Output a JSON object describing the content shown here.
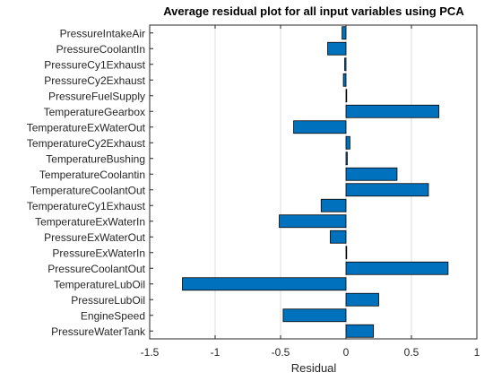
{
  "chart_data": {
    "type": "bar",
    "orientation": "horizontal",
    "title": "Average residual plot for all input variables using PCA",
    "xlabel": "Residual",
    "ylabel": "",
    "xlim": [
      -1.5,
      1
    ],
    "xticks": [
      -1.5,
      -1,
      -0.5,
      0,
      0.5,
      1
    ],
    "xtick_labels": [
      "-1.5",
      "-1",
      "-0.5",
      "0",
      "0.5",
      "1"
    ],
    "grid": true,
    "bar_color": "#0072BD",
    "categories": [
      "PressureIntakeAir",
      "PressureCoolantIn",
      "PressureCy1Exhaust",
      "PressureCy2Exhaust",
      "PressureFuelSupply",
      "TemperatureGearbox",
      "TemperatureExWaterOut",
      "TemperatureCy2Exhaust",
      "TemperatureBushing",
      "TemperatureCoolantin",
      "TemperatureCoolantOut",
      "TemperatureCy1Exhaust",
      "TemperatureExWaterIn",
      "PressureExWaterOut",
      "PressureExWaterIn",
      "PressureCoolantOut",
      "TemperatureLubOil",
      "PressureLubOil",
      "EngineSpeed",
      "PressureWaterTank"
    ],
    "values": [
      -0.03,
      -0.14,
      -0.01,
      -0.02,
      0.0,
      0.71,
      -0.4,
      0.03,
      0.01,
      0.39,
      0.63,
      -0.19,
      -0.51,
      -0.12,
      0.0,
      0.78,
      -1.25,
      0.25,
      -0.48,
      0.21
    ]
  }
}
